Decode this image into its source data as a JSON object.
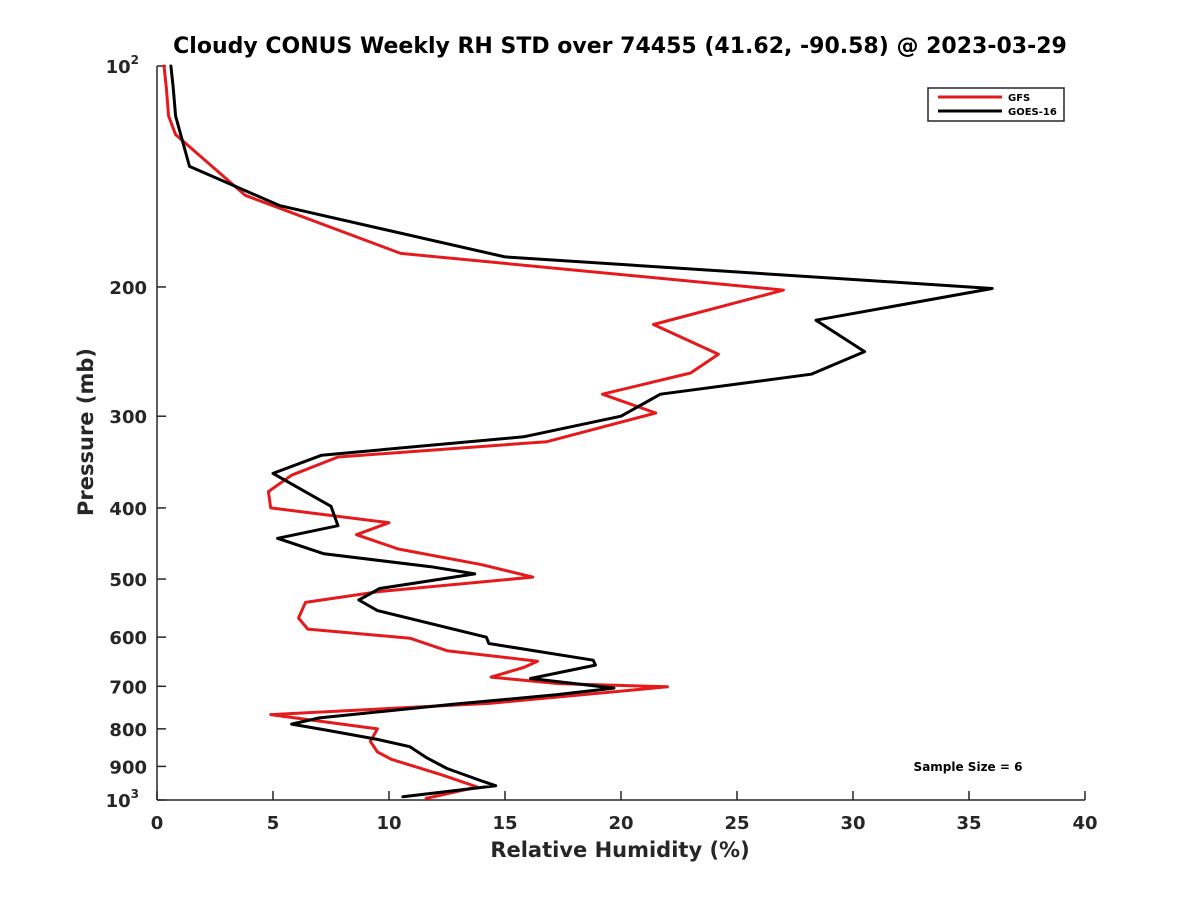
{
  "chart_data": {
    "type": "line",
    "title": "Cloudy CONUS Weekly RH STD over 74455 (41.62, -90.58) @ 2023-03-29",
    "xlabel": "Relative Humidity (%)",
    "ylabel": "Pressure (mb)",
    "xlim": [
      0,
      40
    ],
    "ylim": [
      100,
      1000
    ],
    "y_scale": "log",
    "y_reversed": true,
    "x_ticks": [
      "0",
      "5",
      "10",
      "15",
      "20",
      "25",
      "30",
      "35",
      "40"
    ],
    "y_ticks": [
      {
        "value": 100,
        "base": "10",
        "exp": "2"
      },
      {
        "value": 200,
        "base": "200",
        "exp": ""
      },
      {
        "value": 300,
        "base": "300",
        "exp": ""
      },
      {
        "value": 400,
        "base": "400",
        "exp": ""
      },
      {
        "value": 500,
        "base": "500",
        "exp": ""
      },
      {
        "value": 600,
        "base": "600",
        "exp": ""
      },
      {
        "value": 700,
        "base": "700",
        "exp": ""
      },
      {
        "value": 800,
        "base": "800",
        "exp": ""
      },
      {
        "value": 900,
        "base": "900",
        "exp": ""
      },
      {
        "value": 1000,
        "base": "10",
        "exp": "3"
      }
    ],
    "grid": false,
    "legend_position": "top-right",
    "annotation": "Sample Size = 6",
    "series": [
      {
        "name": "GFS",
        "color": "#e41a1c",
        "points": [
          [
            0.3,
            100
          ],
          [
            0.4,
            107
          ],
          [
            0.5,
            117
          ],
          [
            0.8,
            124
          ],
          [
            3.8,
            150
          ],
          [
            10.5,
            180
          ],
          [
            27.0,
            202
          ],
          [
            21.4,
            225
          ],
          [
            24.2,
            247
          ],
          [
            23.0,
            262
          ],
          [
            19.2,
            280
          ],
          [
            21.5,
            297
          ],
          [
            16.8,
            325
          ],
          [
            7.8,
            341
          ],
          [
            5.8,
            361
          ],
          [
            4.8,
            380
          ],
          [
            4.9,
            400
          ],
          [
            10.0,
            419
          ],
          [
            8.6,
            435
          ],
          [
            10.4,
            455
          ],
          [
            14.0,
            478
          ],
          [
            16.2,
            497
          ],
          [
            9.6,
            520
          ],
          [
            6.4,
            538
          ],
          [
            6.1,
            565
          ],
          [
            6.5,
            585
          ],
          [
            10.9,
            602
          ],
          [
            12.5,
            626
          ],
          [
            16.4,
            647
          ],
          [
            15.8,
            660
          ],
          [
            14.4,
            680
          ],
          [
            17.3,
            694
          ],
          [
            22.0,
            701
          ],
          [
            14.4,
            738
          ],
          [
            4.9,
            765
          ],
          [
            9.5,
            800
          ],
          [
            9.2,
            832
          ],
          [
            9.5,
            860
          ],
          [
            10.1,
            880
          ],
          [
            12.3,
            925
          ],
          [
            13.8,
            960
          ],
          [
            11.6,
            995
          ]
        ]
      },
      {
        "name": "GOES-16",
        "color": "#000000",
        "points": [
          [
            0.6,
            100
          ],
          [
            0.7,
            107
          ],
          [
            0.8,
            117
          ],
          [
            1.4,
            137
          ],
          [
            5.3,
            155
          ],
          [
            15.0,
            182
          ],
          [
            36.0,
            201
          ],
          [
            28.4,
            222
          ],
          [
            30.5,
            245
          ],
          [
            28.2,
            263
          ],
          [
            21.7,
            280
          ],
          [
            20.0,
            300
          ],
          [
            15.8,
            320
          ],
          [
            7.1,
            339
          ],
          [
            5.0,
            359
          ],
          [
            7.5,
            398
          ],
          [
            7.8,
            423
          ],
          [
            5.2,
            440
          ],
          [
            7.2,
            462
          ],
          [
            11.8,
            481
          ],
          [
            13.7,
            492
          ],
          [
            9.6,
            515
          ],
          [
            8.7,
            534
          ],
          [
            9.5,
            552
          ],
          [
            14.2,
            600
          ],
          [
            14.3,
            612
          ],
          [
            18.8,
            645
          ],
          [
            18.9,
            655
          ],
          [
            16.1,
            683
          ],
          [
            19.7,
            704
          ],
          [
            17.2,
            719
          ],
          [
            12.7,
            741
          ],
          [
            7.0,
            773
          ],
          [
            5.8,
            788
          ],
          [
            7.3,
            803
          ],
          [
            9.5,
            827
          ],
          [
            10.9,
            846
          ],
          [
            11.6,
            875
          ],
          [
            12.5,
            906
          ],
          [
            14.0,
            942
          ],
          [
            14.6,
            956
          ],
          [
            10.6,
            990
          ]
        ]
      }
    ]
  }
}
